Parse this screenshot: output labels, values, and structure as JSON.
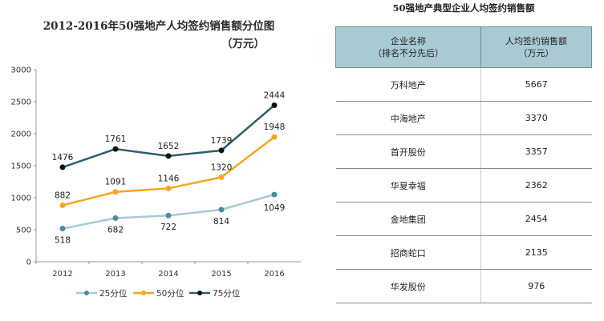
{
  "chart_data": {
    "type": "line",
    "title": "2012-2016年50强地产人均签约销售额分位图",
    "unit": "（万元）",
    "categories": [
      "2012",
      "2013",
      "2014",
      "2015",
      "2016"
    ],
    "ylim": [
      0,
      3000
    ],
    "yticks": [
      0,
      500,
      1000,
      1500,
      2000,
      2500,
      3000
    ],
    "series": [
      {
        "name": "25分位",
        "color": "#a8c8d8",
        "values": [
          518,
          682,
          722,
          814,
          1049
        ]
      },
      {
        "name": "50分位",
        "color": "#f5a623",
        "values": [
          882,
          1091,
          1146,
          1320,
          1948
        ]
      },
      {
        "name": "75分位",
        "color": "#2f5d6e",
        "values": [
          1476,
          1761,
          1652,
          1739,
          2444
        ]
      }
    ],
    "legend_position": "bottom"
  },
  "table": {
    "title": "50强地产典型企业人均签约销售额",
    "header_col1_line1": "企业名称",
    "header_col1_line2": "（排名不分先后）",
    "header_col2_line1": "人均签约销售额",
    "header_col2_line2": "（万元）",
    "rows": [
      {
        "name": "万科地产",
        "value": "5667"
      },
      {
        "name": "中海地产",
        "value": "3370"
      },
      {
        "name": "首开股份",
        "value": "3357"
      },
      {
        "name": "华夏幸福",
        "value": "2362"
      },
      {
        "name": "金地集团",
        "value": "2454"
      },
      {
        "name": "招商蛇口",
        "value": "2135"
      },
      {
        "name": "华发股份",
        "value": "976"
      }
    ]
  }
}
